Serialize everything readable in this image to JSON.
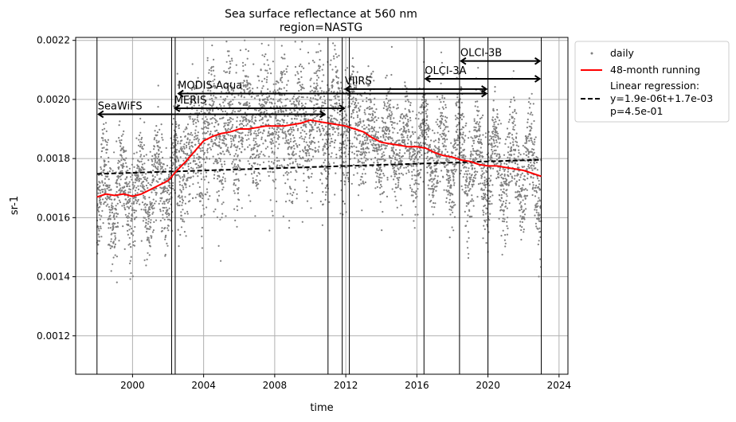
{
  "chart_data": {
    "type": "scatter",
    "title": "Sea surface reflectance at 560 nm",
    "subtitle": "region=NASTG",
    "xlabel": "time",
    "ylabel": "sr-1",
    "xlim": [
      1996.8,
      2024.5
    ],
    "ylim": [
      0.00107,
      0.00221
    ],
    "x_ticks": [
      2000,
      2004,
      2008,
      2012,
      2016,
      2020,
      2024
    ],
    "y_ticks": [
      0.0012,
      0.0014,
      0.0016,
      0.0018,
      0.002,
      0.0022
    ],
    "grid": true,
    "legend_position": "outside-right",
    "legend": {
      "daily": "daily",
      "running": "48-month running",
      "regression_l1": "Linear regression:",
      "regression_l2": "y=1.9e-06t+1.7e-03",
      "regression_l3": "p=4.5e-01"
    },
    "colors": {
      "daily": "#7f7f7f",
      "running": "#ff0000",
      "regression": "#000000"
    },
    "series": [
      {
        "name": "48-month running",
        "x": [
          1998.0,
          1998.5,
          1999.0,
          1999.5,
          2000.0,
          2000.5,
          2001.0,
          2001.5,
          2002.0,
          2002.5,
          2003.0,
          2003.5,
          2004.0,
          2004.5,
          2005.0,
          2005.5,
          2006.0,
          2006.5,
          2007.0,
          2007.5,
          2008.0,
          2008.5,
          2009.0,
          2009.5,
          2010.0,
          2010.5,
          2011.0,
          2011.5,
          2012.0,
          2012.5,
          2013.0,
          2013.5,
          2014.0,
          2014.5,
          2015.0,
          2015.5,
          2016.0,
          2016.5,
          2017.0,
          2017.5,
          2018.0,
          2018.5,
          2019.0,
          2019.5,
          2020.0,
          2020.5,
          2021.0,
          2021.5,
          2022.0,
          2022.5,
          2023.0
        ],
        "values": [
          0.00167,
          0.00168,
          0.001675,
          0.00168,
          0.001672,
          0.00168,
          0.001695,
          0.00171,
          0.001725,
          0.00176,
          0.00179,
          0.001825,
          0.00186,
          0.001875,
          0.001885,
          0.00189,
          0.0019,
          0.0019,
          0.001905,
          0.00191,
          0.00191,
          0.00191,
          0.001915,
          0.00192,
          0.00193,
          0.001925,
          0.00192,
          0.001915,
          0.00191,
          0.0019,
          0.00189,
          0.00187,
          0.001855,
          0.00185,
          0.001845,
          0.00184,
          0.00184,
          0.001835,
          0.00182,
          0.00181,
          0.001805,
          0.001795,
          0.00179,
          0.00178,
          0.001775,
          0.001775,
          0.00177,
          0.001765,
          0.00176,
          0.00175,
          0.00174
        ]
      },
      {
        "name": "Linear regression:",
        "x": [
          1998.0,
          2023.0
        ],
        "values": [
          0.001748,
          0.001796
        ]
      },
      {
        "name": "daily",
        "x_range": [
          1998.0,
          2023.0
        ],
        "typical_range": [
          0.0014,
          0.0022
        ],
        "note_points": "dense daily cloud"
      }
    ],
    "sensor_missions": [
      {
        "label": "SeaWiFS",
        "start": 1998.0,
        "end": 2010.9,
        "level": 0.00195
      },
      {
        "label": "MERIS",
        "start": 2002.3,
        "end": 2012.0,
        "level": 0.00197
      },
      {
        "label": "MODIS-Aqua",
        "start": 2002.5,
        "end": 2020.0,
        "level": 0.00202
      },
      {
        "label": "VIIRS",
        "start": 2011.9,
        "end": 2020.0,
        "level": 0.002035
      },
      {
        "label": "OLCI-3A",
        "start": 2016.4,
        "end": 2023.0,
        "level": 0.00207
      },
      {
        "label": "OLCI-3B",
        "start": 2018.4,
        "end": 2023.0,
        "level": 0.00213
      }
    ],
    "vertical_lines": [
      1998.0,
      2002.2,
      2002.4,
      2011.0,
      2011.8,
      2012.2,
      2016.4,
      2018.4,
      2020.0,
      2023.0
    ]
  }
}
